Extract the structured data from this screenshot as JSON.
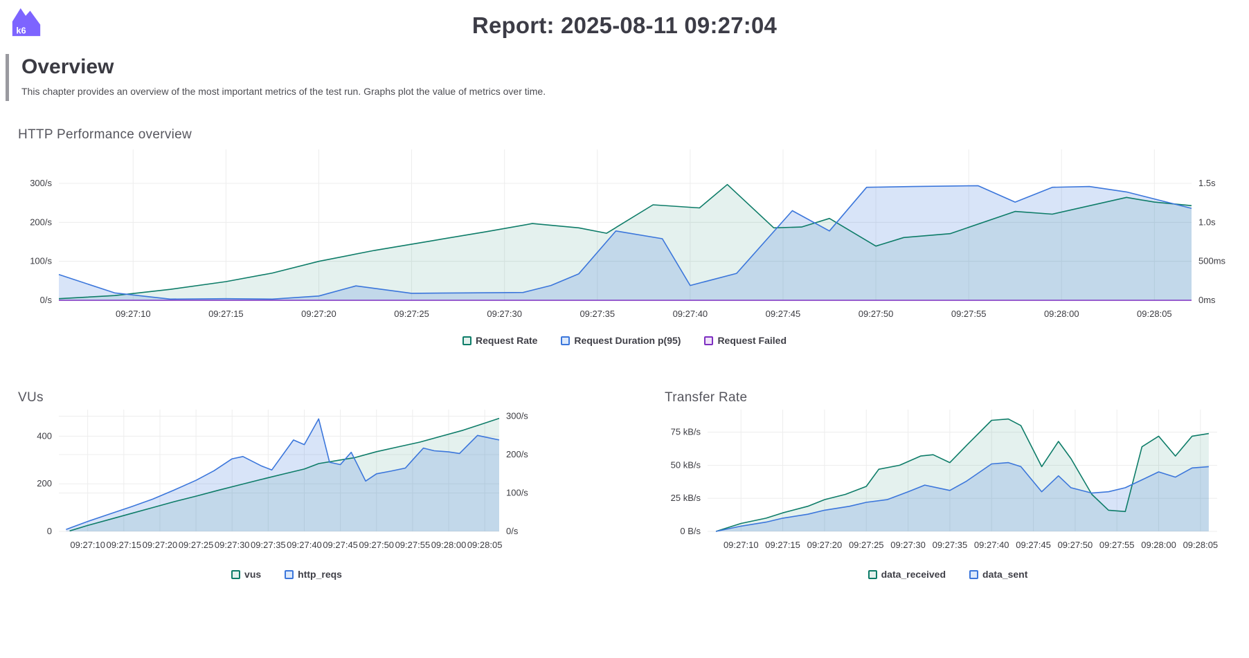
{
  "header": {
    "title": "Report: 2025-08-11 09:27:04",
    "logo_label": "k6"
  },
  "overview": {
    "heading": "Overview",
    "description": "This chapter provides an overview of the most important metrics of the test run. Graphs plot the value of metrics over time."
  },
  "colors": {
    "teal": {
      "line": "#0d7c68",
      "area": "rgba(13,124,104,0.11)",
      "swatch": "#e3f0ec"
    },
    "blue": {
      "line": "#3b76db",
      "area": "rgba(59,118,219,0.20)",
      "swatch": "#dce9fb"
    },
    "purple": {
      "line": "#7d2fc1",
      "area": "rgba(125,47,193,0.10)",
      "swatch": "#f0e2f8"
    },
    "grid": "#ededed",
    "tick_text": "#3b3b41",
    "logo_purple": "#7d64ff"
  },
  "time_ticks": {
    "t": [
      4,
      9,
      14,
      19,
      24,
      29,
      34,
      39,
      44,
      49,
      54,
      59
    ],
    "labels": [
      "09:27:10",
      "09:27:15",
      "09:27:20",
      "09:27:25",
      "09:27:30",
      "09:27:35",
      "09:27:40",
      "09:27:45",
      "09:27:50",
      "09:27:55",
      "09:28:00",
      "09:28:05"
    ]
  },
  "chart_data": [
    {
      "id": "http_performance",
      "type": "area",
      "title": "HTTP Performance overview",
      "x_start": "09:27:06",
      "x_end": "09:28:07",
      "t_domain": [
        0,
        61
      ],
      "grid": true,
      "legend_position": "bottom-center",
      "left_axis": {
        "max": 380,
        "ticks": [
          {
            "v": 0,
            "label": "0/s"
          },
          {
            "v": 100,
            "label": "100/s"
          },
          {
            "v": 200,
            "label": "200/s"
          },
          {
            "v": 300,
            "label": "300/s"
          }
        ]
      },
      "right_axis": {
        "max": 1900,
        "ticks": [
          {
            "v": 0,
            "label": "0ms"
          },
          {
            "v": 500,
            "label": "500ms"
          },
          {
            "v": 1000,
            "label": "1.0s"
          },
          {
            "v": 1500,
            "label": "1.5s"
          }
        ]
      },
      "series": [
        {
          "name": "Request Rate",
          "unit": "requests/s",
          "axis": "left",
          "color": "teal",
          "points": [
            [
              0,
              4
            ],
            [
              3,
              12
            ],
            [
              6,
              28
            ],
            [
              9,
              48
            ],
            [
              11.5,
              70
            ],
            [
              14,
              100
            ],
            [
              17,
              128
            ],
            [
              20,
              152
            ],
            [
              23,
              176
            ],
            [
              25.5,
              197
            ],
            [
              28,
              186
            ],
            [
              29.5,
              172
            ],
            [
              32,
              245
            ],
            [
              34.5,
              237
            ],
            [
              36,
              297
            ],
            [
              38.5,
              186
            ],
            [
              40,
              188
            ],
            [
              41.5,
              210
            ],
            [
              44,
              139
            ],
            [
              45.5,
              161
            ],
            [
              48,
              171
            ],
            [
              51.5,
              228
            ],
            [
              53.5,
              221
            ],
            [
              57.5,
              264
            ],
            [
              59,
              252
            ],
            [
              61,
              243
            ]
          ]
        },
        {
          "name": "Request Duration p(95)",
          "unit": "ms",
          "axis": "right",
          "color": "blue",
          "points": [
            [
              0,
              330
            ],
            [
              3,
              95
            ],
            [
              6,
              15
            ],
            [
              9,
              20
            ],
            [
              11.5,
              15
            ],
            [
              14,
              55
            ],
            [
              16,
              185
            ],
            [
              19,
              90
            ],
            [
              22,
              95
            ],
            [
              25,
              100
            ],
            [
              26.5,
              190
            ],
            [
              28,
              340
            ],
            [
              30,
              890
            ],
            [
              32.5,
              790
            ],
            [
              34,
              190
            ],
            [
              36.5,
              345
            ],
            [
              39.5,
              1150
            ],
            [
              41.5,
              890
            ],
            [
              43.5,
              1450
            ],
            [
              46,
              1460
            ],
            [
              49.5,
              1470
            ],
            [
              51.5,
              1260
            ],
            [
              53.5,
              1450
            ],
            [
              55.5,
              1460
            ],
            [
              57.5,
              1390
            ],
            [
              61,
              1180
            ]
          ]
        },
        {
          "name": "Request Failed",
          "unit": "requests/s",
          "axis": "left",
          "color": "purple",
          "points": [
            [
              0,
              0
            ],
            [
              61,
              0
            ]
          ]
        }
      ]
    },
    {
      "id": "vus",
      "type": "area",
      "title": "VUs",
      "x_start": "09:27:07",
      "x_end": "09:28:07",
      "t_domain": [
        0,
        61
      ],
      "grid": true,
      "legend_position": "bottom-center",
      "left_axis": {
        "max": 500,
        "ticks": [
          {
            "v": 0,
            "label": "0"
          },
          {
            "v": 200,
            "label": "200"
          },
          {
            "v": 400,
            "label": "400"
          }
        ]
      },
      "right_axis": {
        "max": 310,
        "ticks": [
          {
            "v": 0,
            "label": "0/s"
          },
          {
            "v": 100,
            "label": "100/s"
          },
          {
            "v": 200,
            "label": "200/s"
          },
          {
            "v": 300,
            "label": "300/s"
          }
        ]
      },
      "series": [
        {
          "name": "vus",
          "unit": "VUs",
          "axis": "left",
          "color": "teal",
          "points": [
            [
              1.5,
              2
            ],
            [
              4,
              25
            ],
            [
              7,
              50
            ],
            [
              10,
              75
            ],
            [
              13,
              100
            ],
            [
              16,
              125
            ],
            [
              19,
              148
            ],
            [
              22,
              172
            ],
            [
              25,
              195
            ],
            [
              28,
              218
            ],
            [
              31,
              240
            ],
            [
              34,
              262
            ],
            [
              36,
              285
            ],
            [
              39,
              300
            ],
            [
              41,
              310
            ],
            [
              44,
              335
            ],
            [
              47,
              355
            ],
            [
              50,
              375
            ],
            [
              53,
              400
            ],
            [
              56,
              425
            ],
            [
              58.5,
              450
            ],
            [
              61,
              475
            ]
          ]
        },
        {
          "name": "http_reqs",
          "unit": "requests/s",
          "axis": "right",
          "color": "blue",
          "points": [
            [
              1,
              5
            ],
            [
              4,
              26
            ],
            [
              7,
              45
            ],
            [
              10,
              64
            ],
            [
              13,
              84
            ],
            [
              16,
              108
            ],
            [
              19,
              133
            ],
            [
              21.5,
              158
            ],
            [
              24,
              189
            ],
            [
              25.5,
              195
            ],
            [
              28,
              171
            ],
            [
              29.5,
              160
            ],
            [
              32.5,
              238
            ],
            [
              34,
              226
            ],
            [
              36,
              293
            ],
            [
              37.5,
              180
            ],
            [
              39,
              174
            ],
            [
              40.5,
              206
            ],
            [
              42.5,
              131
            ],
            [
              44,
              150
            ],
            [
              46,
              157
            ],
            [
              48,
              165
            ],
            [
              49,
              186
            ],
            [
              50.5,
              217
            ],
            [
              52,
              210
            ],
            [
              54,
              207
            ],
            [
              55.5,
              203
            ],
            [
              58,
              250
            ],
            [
              61,
              238
            ]
          ]
        }
      ]
    },
    {
      "id": "transfer_rate",
      "type": "area",
      "title": "Transfer Rate",
      "x_start": "09:27:07",
      "x_end": "09:28:07",
      "t_domain": [
        0,
        61
      ],
      "grid": true,
      "legend_position": "bottom-center",
      "left_axis": {
        "max": 90,
        "ticks": [
          {
            "v": 0,
            "label": "0 B/s"
          },
          {
            "v": 25,
            "label": "25 kB/s"
          },
          {
            "v": 50,
            "label": "50 kB/s"
          },
          {
            "v": 75,
            "label": "75 kB/s"
          }
        ]
      },
      "series": [
        {
          "name": "data_received",
          "unit": "kB/s",
          "axis": "left",
          "color": "teal",
          "points": [
            [
              1,
              0
            ],
            [
              4,
              6
            ],
            [
              7,
              10
            ],
            [
              9,
              14
            ],
            [
              12,
              19
            ],
            [
              14,
              24
            ],
            [
              16.5,
              28
            ],
            [
              19,
              34
            ],
            [
              20.5,
              47
            ],
            [
              23,
              50
            ],
            [
              25.5,
              57
            ],
            [
              27,
              58
            ],
            [
              29,
              52
            ],
            [
              31,
              65
            ],
            [
              34,
              84
            ],
            [
              36,
              85
            ],
            [
              37.5,
              80
            ],
            [
              40,
              49
            ],
            [
              42,
              68
            ],
            [
              43.5,
              55
            ],
            [
              46,
              28
            ],
            [
              48,
              16
            ],
            [
              50,
              15
            ],
            [
              52,
              64
            ],
            [
              54,
              72
            ],
            [
              56,
              57
            ],
            [
              58,
              72
            ],
            [
              60,
              74
            ]
          ]
        },
        {
          "name": "data_sent",
          "unit": "kB/s",
          "axis": "left",
          "color": "blue",
          "points": [
            [
              1,
              0
            ],
            [
              4,
              4
            ],
            [
              7,
              7
            ],
            [
              9,
              10
            ],
            [
              12,
              13
            ],
            [
              14,
              16
            ],
            [
              17,
              19
            ],
            [
              19,
              22
            ],
            [
              21.5,
              24
            ],
            [
              24,
              30
            ],
            [
              26,
              35
            ],
            [
              29,
              31
            ],
            [
              31,
              38
            ],
            [
              34,
              51
            ],
            [
              36,
              52
            ],
            [
              37.5,
              49
            ],
            [
              40,
              30
            ],
            [
              42,
              42
            ],
            [
              43.5,
              33
            ],
            [
              46,
              29
            ],
            [
              48,
              30
            ],
            [
              50,
              33
            ],
            [
              52,
              39
            ],
            [
              54,
              45
            ],
            [
              56,
              41
            ],
            [
              58,
              48
            ],
            [
              60,
              49
            ]
          ]
        }
      ]
    }
  ]
}
